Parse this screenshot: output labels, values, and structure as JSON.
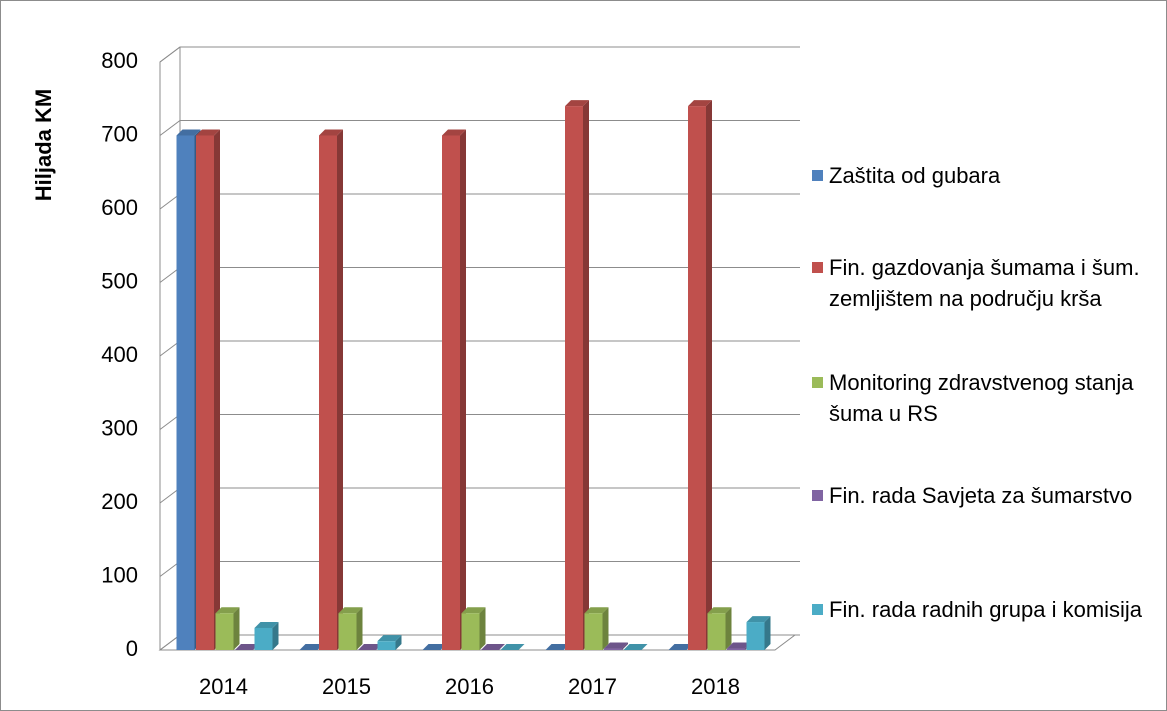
{
  "chart_data": {
    "type": "bar3d",
    "y_label": "Hiljada KM",
    "categories": [
      "2014",
      "2015",
      "2016",
      "2017",
      "2018"
    ],
    "series": [
      {
        "name": "Zaštita od gubara",
        "color": "#4f81bd",
        "values": [
          700,
          0,
          0,
          0,
          0
        ]
      },
      {
        "name": "Fin. gazdovanja šumama i šum. zemljištem na području krša",
        "color": "#c0504d",
        "values": [
          700,
          700,
          700,
          740,
          740
        ]
      },
      {
        "name": "Monitoring zdravstvenog stanja šuma u RS",
        "color": "#9bbb59",
        "values": [
          50,
          50,
          50,
          50,
          50
        ]
      },
      {
        "name": "Fin. rada Savjeta za šumarstvo",
        "color": "#8064a2",
        "values": [
          0,
          0,
          0,
          2,
          2
        ]
      },
      {
        "name": "Fin. rada radnih grupa i komisija",
        "color": "#4bacc6",
        "values": [
          30,
          12,
          0,
          0,
          38
        ]
      }
    ],
    "ylim": [
      0,
      800
    ],
    "yticks": [
      0,
      100,
      200,
      300,
      400,
      500,
      600,
      700,
      800
    ],
    "grid": true,
    "legend": "right"
  }
}
